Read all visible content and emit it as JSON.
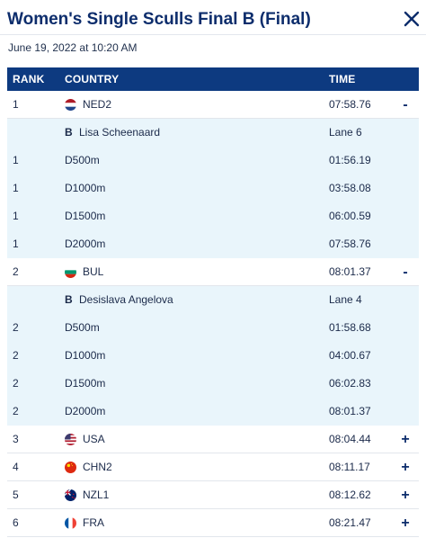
{
  "header": {
    "title": "Women's Single Sculls Final B (Final)",
    "datetime": "June 19, 2022 at 10:20 AM"
  },
  "table": {
    "columns": {
      "rank": "RANK",
      "country": "COUNTRY",
      "time": "TIME"
    },
    "entries": [
      {
        "rank": "1",
        "flag": "netherlands-flag-icon",
        "code": "NED2",
        "time": "07:58.76",
        "toggle": "-",
        "expanded": true,
        "boat": "B",
        "athlete": "Lisa Scheenaard",
        "lane": "Lane 6",
        "splits": [
          {
            "rank": "1",
            "distance": "D500m",
            "time": "01:56.19"
          },
          {
            "rank": "1",
            "distance": "D1000m",
            "time": "03:58.08"
          },
          {
            "rank": "1",
            "distance": "D1500m",
            "time": "06:00.59"
          },
          {
            "rank": "1",
            "distance": "D2000m",
            "time": "07:58.76"
          }
        ]
      },
      {
        "rank": "2",
        "flag": "bulgaria-flag-icon",
        "code": "BUL",
        "time": "08:01.37",
        "toggle": "-",
        "expanded": true,
        "boat": "B",
        "athlete": "Desislava Angelova",
        "lane": "Lane 4",
        "splits": [
          {
            "rank": "2",
            "distance": "D500m",
            "time": "01:58.68"
          },
          {
            "rank": "2",
            "distance": "D1000m",
            "time": "04:00.67"
          },
          {
            "rank": "2",
            "distance": "D1500m",
            "time": "06:02.83"
          },
          {
            "rank": "2",
            "distance": "D2000m",
            "time": "08:01.37"
          }
        ]
      },
      {
        "rank": "3",
        "flag": "usa-flag-icon",
        "code": "USA",
        "time": "08:04.44",
        "toggle": "+",
        "expanded": false
      },
      {
        "rank": "4",
        "flag": "china-flag-icon",
        "code": "CHN2",
        "time": "08:11.17",
        "toggle": "+",
        "expanded": false
      },
      {
        "rank": "5",
        "flag": "new-zealand-flag-icon",
        "code": "NZL1",
        "time": "08:12.62",
        "toggle": "+",
        "expanded": false
      },
      {
        "rank": "6",
        "flag": "france-flag-icon",
        "code": "FRA",
        "time": "08:21.47",
        "toggle": "+",
        "expanded": false
      }
    ]
  },
  "colors": {
    "title": "#0d2d6c",
    "header_bg": "#0d3a80",
    "detail_bg": "#e9f5fb"
  }
}
